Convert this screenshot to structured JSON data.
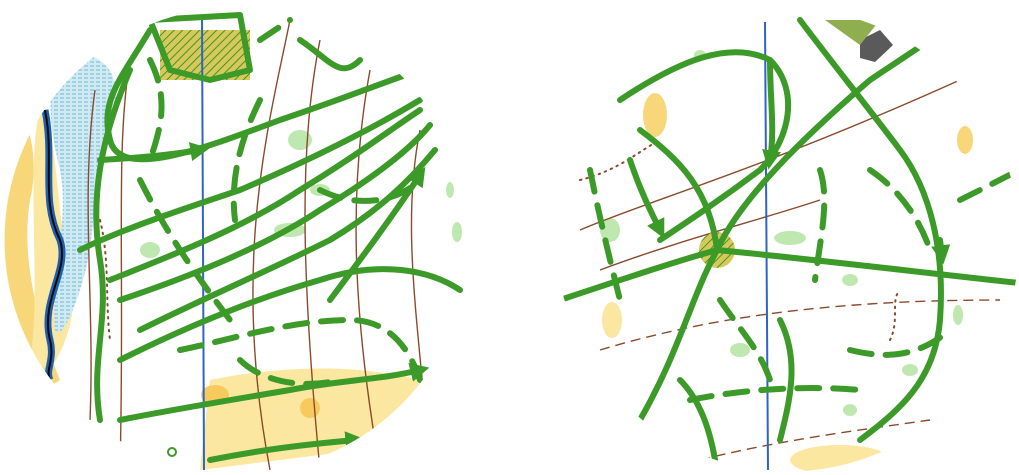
{
  "maps": [
    {
      "name": "left-map-circle"
    },
    {
      "name": "right-map-circle"
    }
  ],
  "colors": {
    "route_green": "#3c9a28",
    "open_land_yellow": "#fbe7a0",
    "rough_yellow": "#f8c95c",
    "green_vegetation": "#bfe7b0",
    "contour_brown": "#8b4a2b",
    "water_blue": "#1f5fae",
    "marsh_blue": "#9ed4e8",
    "north_line": "#2e63c9",
    "building_gray": "#5a5a5a"
  },
  "icons": [
    "north-line",
    "route-arrow",
    "map-crossing-hatch",
    "building"
  ]
}
